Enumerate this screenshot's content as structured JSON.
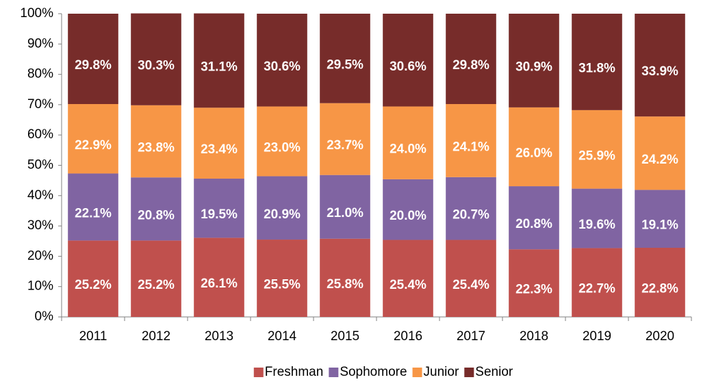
{
  "chart_data": {
    "type": "stacked_bar",
    "categories": [
      "2011",
      "2012",
      "2013",
      "2014",
      "2015",
      "2016",
      "2017",
      "2018",
      "2019",
      "2020"
    ],
    "series": [
      {
        "name": "Freshman",
        "color": "#c0504d",
        "values": [
          25.2,
          25.2,
          26.1,
          25.5,
          25.8,
          25.4,
          25.4,
          22.3,
          22.7,
          22.8
        ],
        "value_labels": [
          "25.2%",
          "25.2%",
          "26.1%",
          "25.5%",
          "25.8%",
          "25.4%",
          "25.4%",
          "22.3%",
          "22.7%",
          "22.8%"
        ]
      },
      {
        "name": "Sophomore",
        "color": "#8064a2",
        "values": [
          22.1,
          20.8,
          19.5,
          20.9,
          21.0,
          20.0,
          20.7,
          20.8,
          19.6,
          19.1
        ],
        "value_labels": [
          "22.1%",
          "20.8%",
          "19.5%",
          "20.9%",
          "21.0%",
          "20.0%",
          "20.7%",
          "20.8%",
          "19.6%",
          "19.1%"
        ]
      },
      {
        "name": "Junior",
        "color": "#f79646",
        "values": [
          22.9,
          23.8,
          23.4,
          23.0,
          23.7,
          24.0,
          24.1,
          26.0,
          25.9,
          24.2
        ],
        "value_labels": [
          "22.9%",
          "23.8%",
          "23.4%",
          "23.0%",
          "23.7%",
          "24.0%",
          "24.1%",
          "26.0%",
          "25.9%",
          "24.2%"
        ]
      },
      {
        "name": "Senior",
        "color": "#772c2a",
        "values": [
          29.8,
          30.3,
          31.1,
          30.6,
          29.5,
          30.6,
          29.8,
          30.9,
          31.8,
          33.9
        ],
        "value_labels": [
          "29.8%",
          "30.3%",
          "31.1%",
          "30.6%",
          "29.5%",
          "30.6%",
          "29.8%",
          "30.9%",
          "31.8%",
          "33.9%"
        ]
      }
    ],
    "ylim": [
      0,
      100
    ],
    "yticks": [
      {
        "value": 0,
        "label": "0%"
      },
      {
        "value": 10,
        "label": "10%"
      },
      {
        "value": 20,
        "label": "20%"
      },
      {
        "value": 30,
        "label": "30%"
      },
      {
        "value": 40,
        "label": "40%"
      },
      {
        "value": 50,
        "label": "50%"
      },
      {
        "value": 60,
        "label": "60%"
      },
      {
        "value": 70,
        "label": "70%"
      },
      {
        "value": 80,
        "label": "80%"
      },
      {
        "value": 90,
        "label": "90%"
      },
      {
        "value": 100,
        "label": "100%"
      }
    ],
    "grid": false,
    "legend": "bottom"
  }
}
